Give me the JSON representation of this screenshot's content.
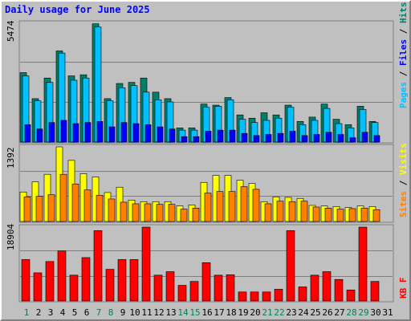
{
  "title": "Daily usage for June 2025",
  "colors": {
    "hits": "#00806b",
    "files": "#00c0ff",
    "pages": "#0000ff",
    "visits": "#ffff00",
    "sites": "#ff8000",
    "kbf": "#ff0000",
    "weekend_label": "#00805c",
    "weekday_label": "#000000"
  },
  "legend": {
    "top": {
      "pages": "Pages",
      "sep1": " / ",
      "files": "Files",
      "sep2": " / ",
      "hits": "Hits"
    },
    "middle": {
      "sites": "Sites",
      "sep": " / ",
      "visits": "Visits"
    },
    "bottom": {
      "kbf": "KB F"
    }
  },
  "chart_data": [
    {
      "type": "bar",
      "title": "Daily usage for June 2025",
      "ymax_label": "5474",
      "ylim": [
        0,
        5474
      ],
      "categories": [
        "1",
        "2",
        "3",
        "4",
        "5",
        "6",
        "7",
        "8",
        "9",
        "10",
        "11",
        "12",
        "13",
        "14",
        "15",
        "16",
        "17",
        "18",
        "19",
        "20",
        "21",
        "22",
        "23",
        "24",
        "25",
        "26",
        "27",
        "28",
        "29",
        "30",
        "31"
      ],
      "weekend_days": [
        "1",
        "7",
        "8",
        "14",
        "15",
        "21",
        "22",
        "28",
        "29"
      ],
      "series": [
        {
          "name": "Hits",
          "values": [
            3200,
            2000,
            2950,
            4200,
            3050,
            3100,
            5450,
            2000,
            2700,
            2750,
            2950,
            2300,
            2000,
            650,
            650,
            1750,
            1700,
            2050,
            1250,
            1100,
            1350,
            1250,
            1700,
            950,
            1150,
            1750,
            1050,
            800,
            1650,
            950,
            0
          ]
        },
        {
          "name": "Files",
          "values": [
            3050,
            1900,
            2750,
            4100,
            2850,
            2950,
            5300,
            1900,
            2500,
            2600,
            2300,
            1950,
            1850,
            550,
            550,
            1600,
            1650,
            1950,
            1050,
            900,
            1000,
            1100,
            1600,
            800,
            1000,
            1550,
            850,
            650,
            1500,
            900,
            0
          ]
        },
        {
          "name": "Pages",
          "values": [
            800,
            600,
            900,
            1000,
            850,
            900,
            950,
            700,
            900,
            850,
            800,
            700,
            600,
            250,
            250,
            500,
            550,
            550,
            400,
            300,
            350,
            400,
            500,
            300,
            350,
            450,
            350,
            200,
            450,
            300,
            0
          ]
        }
      ]
    },
    {
      "type": "bar",
      "ymax_label": "1392",
      "ylim": [
        0,
        1392
      ],
      "categories": [
        "1",
        "2",
        "3",
        "4",
        "5",
        "6",
        "7",
        "8",
        "9",
        "10",
        "11",
        "12",
        "13",
        "14",
        "15",
        "16",
        "17",
        "18",
        "19",
        "20",
        "21",
        "22",
        "23",
        "24",
        "25",
        "26",
        "27",
        "28",
        "29",
        "30",
        "31"
      ],
      "series": [
        {
          "name": "Visits",
          "values": [
            550,
            740,
            880,
            1392,
            1140,
            890,
            830,
            540,
            640,
            400,
            370,
            370,
            370,
            290,
            310,
            730,
            860,
            860,
            770,
            710,
            370,
            460,
            450,
            430,
            300,
            290,
            280,
            260,
            290,
            280,
            0
          ]
        },
        {
          "name": "Sites",
          "values": [
            460,
            470,
            500,
            880,
            700,
            590,
            490,
            420,
            360,
            330,
            330,
            320,
            320,
            230,
            250,
            530,
            560,
            560,
            650,
            600,
            330,
            380,
            370,
            380,
            270,
            250,
            230,
            240,
            250,
            220,
            0
          ]
        }
      ]
    },
    {
      "type": "bar",
      "ymax_label": "18904",
      "ylim": [
        0,
        18904
      ],
      "categories": [
        "1",
        "2",
        "3",
        "4",
        "5",
        "6",
        "7",
        "8",
        "9",
        "10",
        "11",
        "12",
        "13",
        "14",
        "15",
        "16",
        "17",
        "18",
        "19",
        "20",
        "21",
        "22",
        "23",
        "24",
        "25",
        "26",
        "27",
        "28",
        "29",
        "30",
        "31"
      ],
      "series": [
        {
          "name": "KB F",
          "values": [
            10600,
            7200,
            10100,
            12800,
            6600,
            11100,
            18000,
            8100,
            10600,
            10600,
            18904,
            6600,
            7500,
            4000,
            5000,
            9800,
            6600,
            6700,
            2300,
            2300,
            2300,
            3000,
            18000,
            3600,
            6600,
            7500,
            5500,
            2800,
            18904,
            5000,
            0
          ]
        }
      ]
    }
  ]
}
